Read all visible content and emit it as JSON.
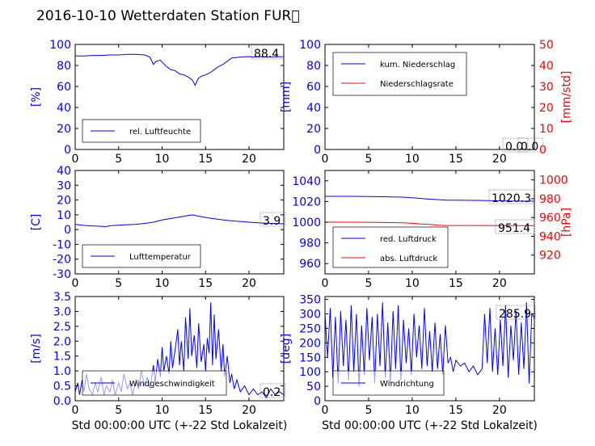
{
  "title": "2016-10-10 Wetterdaten Station FUR\u0000",
  "colors": {
    "blue": "#0000ff",
    "red": "#ff0000",
    "black": "#000000"
  },
  "chart_data": [
    {
      "id": "humidity",
      "type": "line",
      "xlim": [
        0,
        24
      ],
      "ylim": [
        0,
        100
      ],
      "xticks": [
        0,
        5,
        10,
        15,
        20
      ],
      "yticks": [
        0,
        20,
        40,
        60,
        80,
        100
      ],
      "ylabel": "[%]",
      "current_value": "88.4",
      "legend_placement": "lower-left",
      "series": [
        {
          "name": "rel. Luftfeuchte",
          "color": "#0000ff",
          "x": [
            0,
            1,
            2,
            3,
            4,
            5,
            6,
            7,
            8,
            8.6,
            9,
            9.3,
            9.8,
            10.5,
            11,
            11.5,
            12,
            12.5,
            13,
            13.5,
            13.8,
            14,
            14.2,
            14.6,
            15,
            15.5,
            16,
            16.5,
            17,
            17.5,
            18,
            19,
            20,
            20.5,
            21,
            22,
            23,
            24
          ],
          "y": [
            89,
            89,
            89.5,
            89.5,
            90,
            90,
            90.5,
            90.5,
            90,
            88,
            81,
            84,
            85,
            79,
            76,
            75,
            72,
            71,
            69,
            66,
            61,
            65,
            68,
            70,
            71,
            73,
            76,
            79,
            81,
            84,
            87,
            88,
            88.5,
            88,
            88.4,
            88,
            88.2,
            88.4
          ]
        }
      ]
    },
    {
      "id": "precipitation",
      "type": "line",
      "xlim": [
        0,
        24
      ],
      "ylim": [
        0,
        100
      ],
      "y2lim": [
        0,
        50
      ],
      "xticks": [
        0,
        5,
        10,
        15,
        20
      ],
      "yticks": [
        0,
        20,
        40,
        60,
        80,
        100
      ],
      "y2ticks": [
        0,
        10,
        20,
        30,
        40,
        50
      ],
      "ylabel": "[mm]",
      "y2label": "[mm/std]",
      "current_value": "0.0",
      "current_value2": "0.0",
      "legend_placement": "upper-left",
      "series": [
        {
          "name": "kum. Niederschlag",
          "color": "#0000ff",
          "axis": "left",
          "x": [
            0,
            24
          ],
          "y": [
            0,
            0
          ]
        },
        {
          "name": "Niederschlagsrate",
          "color": "#ff0000",
          "axis": "right",
          "x": [
            0,
            24
          ],
          "y": [
            0,
            0
          ]
        }
      ]
    },
    {
      "id": "temperature",
      "type": "line",
      "xlim": [
        0,
        24
      ],
      "ylim": [
        -30,
        40
      ],
      "xticks": [
        0,
        5,
        10,
        15,
        20
      ],
      "yticks": [
        -30,
        -20,
        -10,
        0,
        10,
        20,
        30,
        40
      ],
      "ylabel": "[C]",
      "current_value": "3.9",
      "legend_placement": "lower-left",
      "series": [
        {
          "name": "Lufttemperatur",
          "color": "#0000ff",
          "x": [
            0,
            1,
            2,
            3,
            3.5,
            4,
            5,
            6,
            7,
            8,
            9,
            10,
            11,
            12,
            13,
            13.5,
            14,
            15,
            16,
            17,
            18,
            19,
            20,
            21,
            22,
            23,
            24
          ],
          "y": [
            3.5,
            2.8,
            2.5,
            2.2,
            2.0,
            2.6,
            3.0,
            3.3,
            3.6,
            4.2,
            5.0,
            6.5,
            7.5,
            8.5,
            9.5,
            10.0,
            9.3,
            8.2,
            7.3,
            6.6,
            6.0,
            5.5,
            5.0,
            4.6,
            4.3,
            4.1,
            3.9
          ]
        }
      ]
    },
    {
      "id": "pressure",
      "type": "line",
      "xlim": [
        0,
        24
      ],
      "ylim": [
        950,
        1050
      ],
      "y2lim": [
        900,
        1010
      ],
      "xticks": [
        0,
        5,
        10,
        15,
        20
      ],
      "yticks": [
        960,
        980,
        1000,
        1020,
        1040
      ],
      "y2ticks": [
        920,
        940,
        960,
        980,
        1000
      ],
      "ylabel": "",
      "y2label": "[hPa]",
      "current_value": "1020.3",
      "current_value2": "951.4",
      "legend_placement": "lower-left",
      "series": [
        {
          "name": "red. Luftdruck",
          "color": "#0000ff",
          "axis": "left",
          "x": [
            0,
            3,
            6,
            9,
            10,
            11,
            12,
            14,
            15,
            18,
            21,
            24
          ],
          "y": [
            1025,
            1025,
            1024.7,
            1024.2,
            1023.6,
            1023,
            1022.3,
            1021.3,
            1021.3,
            1021,
            1020.5,
            1020.3
          ]
        },
        {
          "name": "abs. Luftdruck",
          "color": "#ff0000",
          "axis": "right",
          "x": [
            0,
            3,
            6,
            9,
            10,
            11,
            12,
            13,
            14,
            15,
            18,
            21,
            24
          ],
          "y": [
            955.1,
            955.0,
            954.8,
            954.4,
            953.8,
            953.2,
            952.6,
            951.8,
            951.5,
            951.5,
            951.5,
            951.4,
            951.4
          ]
        }
      ]
    },
    {
      "id": "windspeed",
      "type": "line",
      "xlim": [
        0,
        24
      ],
      "ylim": [
        0,
        3.5
      ],
      "xticks": [
        0,
        5,
        10,
        15,
        20
      ],
      "yticks": [
        0,
        0.5,
        1.0,
        1.5,
        2.0,
        2.5,
        3.0,
        3.5
      ],
      "ytick_labels": [
        "0.0",
        "0.5",
        "1.0",
        "1.5",
        "2.0",
        "2.5",
        "3.0",
        "3.5"
      ],
      "ylabel": "[m/s]",
      "xlabel": "Std 00:00:00 UTC (+-22 Std Lokalzeit)",
      "current_value": "0.2",
      "legend_placement": "lower-left",
      "series": [
        {
          "name": "Windgeschwindigkeit",
          "color": "#0000ff",
          "x": [
            0,
            0.3,
            0.5,
            0.8,
            1,
            1.3,
            1.6,
            2,
            2.3,
            2.6,
            3,
            3.3,
            3.6,
            4,
            4.3,
            4.6,
            5,
            5.3,
            5.6,
            6,
            6.3,
            6.6,
            7,
            7.3,
            7.6,
            8,
            8.3,
            8.6,
            9,
            9.2,
            9.5,
            9.8,
            10,
            10.2,
            10.5,
            10.8,
            11,
            11.2,
            11.5,
            11.8,
            12,
            12.2,
            12.5,
            12.7,
            13,
            13.2,
            13.4,
            13.7,
            14,
            14.2,
            14.5,
            14.8,
            15,
            15.2,
            15.4,
            15.6,
            15.8,
            16,
            16.2,
            16.5,
            16.8,
            17,
            17.2,
            17.5,
            17.8,
            18,
            18.3,
            18.6,
            19,
            19.5,
            20,
            20.5,
            21,
            21.5,
            22,
            22.5,
            23,
            23.5,
            24
          ],
          "y": [
            0.3,
            0.6,
            0.2,
            0.7,
            0.3,
            0.9,
            0.4,
            0.2,
            0.6,
            0.3,
            0.8,
            0.2,
            0.5,
            0.3,
            0.7,
            0.2,
            0.6,
            0.3,
            0.9,
            0.4,
            0.6,
            0.2,
            0.7,
            0.4,
            1.0,
            0.5,
            0.8,
            0.4,
            1.2,
            0.6,
            1.4,
            0.8,
            1.8,
            1.0,
            1.5,
            0.9,
            2.0,
            1.1,
            1.7,
            2.4,
            1.2,
            2.0,
            1.0,
            2.8,
            1.4,
            3.1,
            1.5,
            2.2,
            1.1,
            2.6,
            1.3,
            1.9,
            1.0,
            2.1,
            1.6,
            3.3,
            1.2,
            2.9,
            1.4,
            2.4,
            1.0,
            1.9,
            0.8,
            1.5,
            0.6,
            0.9,
            0.4,
            0.7,
            0.3,
            0.5,
            0.2,
            0.4,
            0.2,
            0.3,
            0.1,
            0.4,
            0.2,
            0.3,
            0.2
          ]
        }
      ]
    },
    {
      "id": "winddirection",
      "type": "line",
      "xlim": [
        0,
        24
      ],
      "ylim": [
        0,
        360
      ],
      "xticks": [
        0,
        5,
        10,
        15,
        20
      ],
      "yticks": [
        0,
        50,
        100,
        150,
        200,
        250,
        300,
        350
      ],
      "ylabel": "[deg]",
      "xlabel": "Std 00:00:00 UTC (+-22 Std Lokalzeit)",
      "current_value": "285.9",
      "legend_placement": "lower-left",
      "series": [
        {
          "name": "Windrichtung",
          "color": "#0000ff",
          "x": [
            0,
            0.3,
            0.6,
            0.9,
            1.2,
            1.5,
            1.8,
            2.1,
            2.4,
            2.7,
            3,
            3.3,
            3.6,
            3.9,
            4.2,
            4.5,
            4.8,
            5.1,
            5.4,
            5.7,
            6,
            6.3,
            6.6,
            6.9,
            7.2,
            7.5,
            7.8,
            8.1,
            8.4,
            8.7,
            9,
            9.3,
            9.6,
            9.9,
            10.2,
            10.5,
            10.8,
            11.1,
            11.4,
            11.7,
            12,
            12.3,
            12.6,
            12.9,
            13.2,
            13.5,
            13.8,
            14.1,
            14.4,
            14.7,
            15,
            15.5,
            16,
            16.5,
            17,
            17.5,
            18,
            18.3,
            18.6,
            18.9,
            19.2,
            19.5,
            19.8,
            20.1,
            20.4,
            20.7,
            21,
            21.3,
            21.6,
            21.9,
            22.2,
            22.5,
            22.8,
            23.1,
            23.4,
            23.7,
            24
          ],
          "y": [
            300,
            150,
            320,
            80,
            290,
            60,
            310,
            120,
            280,
            70,
            330,
            100,
            300,
            50,
            260,
            90,
            320,
            140,
            290,
            60,
            300,
            120,
            340,
            80,
            270,
            60,
            310,
            110,
            330,
            70,
            280,
            130,
            250,
            90,
            300,
            150,
            260,
            110,
            320,
            120,
            240,
            100,
            270,
            110,
            230,
            90,
            260,
            130,
            150,
            100,
            140,
            120,
            130,
            100,
            120,
            90,
            110,
            300,
            130,
            320,
            100,
            250,
            90,
            280,
            120,
            330,
            80,
            260,
            140,
            310,
            90,
            270,
            110,
            340,
            60,
            300,
            286
          ]
        }
      ]
    }
  ]
}
